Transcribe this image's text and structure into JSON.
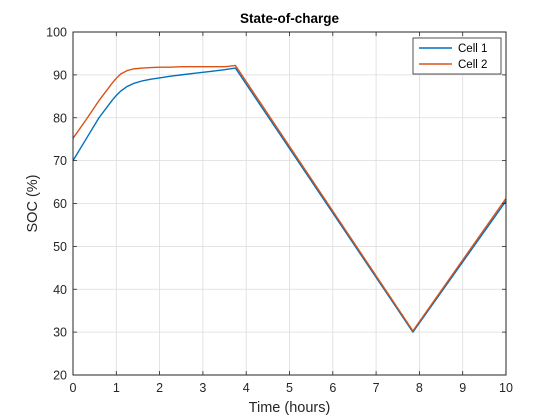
{
  "chart_data": {
    "type": "line",
    "title": "State-of-charge",
    "xlabel": "Time (hours)",
    "ylabel": "SOC (%)",
    "xlim": [
      0,
      10
    ],
    "ylim": [
      20,
      100
    ],
    "xticks": [
      0,
      1,
      2,
      3,
      4,
      5,
      6,
      7,
      8,
      9,
      10
    ],
    "yticks": [
      20,
      30,
      40,
      50,
      60,
      70,
      80,
      90,
      100
    ],
    "grid": true,
    "legend_position": "top-right",
    "series": [
      {
        "name": "Cell 1",
        "color": "#0072BD",
        "x": [
          0,
          0.3,
          0.6,
          0.9,
          1.0,
          1.1,
          1.25,
          1.4,
          1.6,
          1.8,
          2.0,
          2.25,
          2.5,
          2.75,
          3.0,
          3.25,
          3.5,
          3.75,
          7.85,
          10.0
        ],
        "y": [
          70,
          75,
          80,
          84,
          85.2,
          86.2,
          87.3,
          88.0,
          88.6,
          89.0,
          89.3,
          89.7,
          90.0,
          90.3,
          90.6,
          90.9,
          91.2,
          91.6,
          30.0,
          60.6
        ]
      },
      {
        "name": "Cell 2",
        "color": "#D95319",
        "x": [
          0,
          0.3,
          0.6,
          0.9,
          1.0,
          1.1,
          1.25,
          1.4,
          1.6,
          1.8,
          2.0,
          2.25,
          2.5,
          2.75,
          3.0,
          3.25,
          3.5,
          3.6,
          3.75,
          7.85,
          10.0
        ],
        "y": [
          75.2,
          79.5,
          84.0,
          88.0,
          89.2,
          90.2,
          91.0,
          91.4,
          91.6,
          91.7,
          91.8,
          91.8,
          91.9,
          91.9,
          91.9,
          91.9,
          91.9,
          92.0,
          92.2,
          30.3,
          61.2
        ]
      }
    ]
  }
}
